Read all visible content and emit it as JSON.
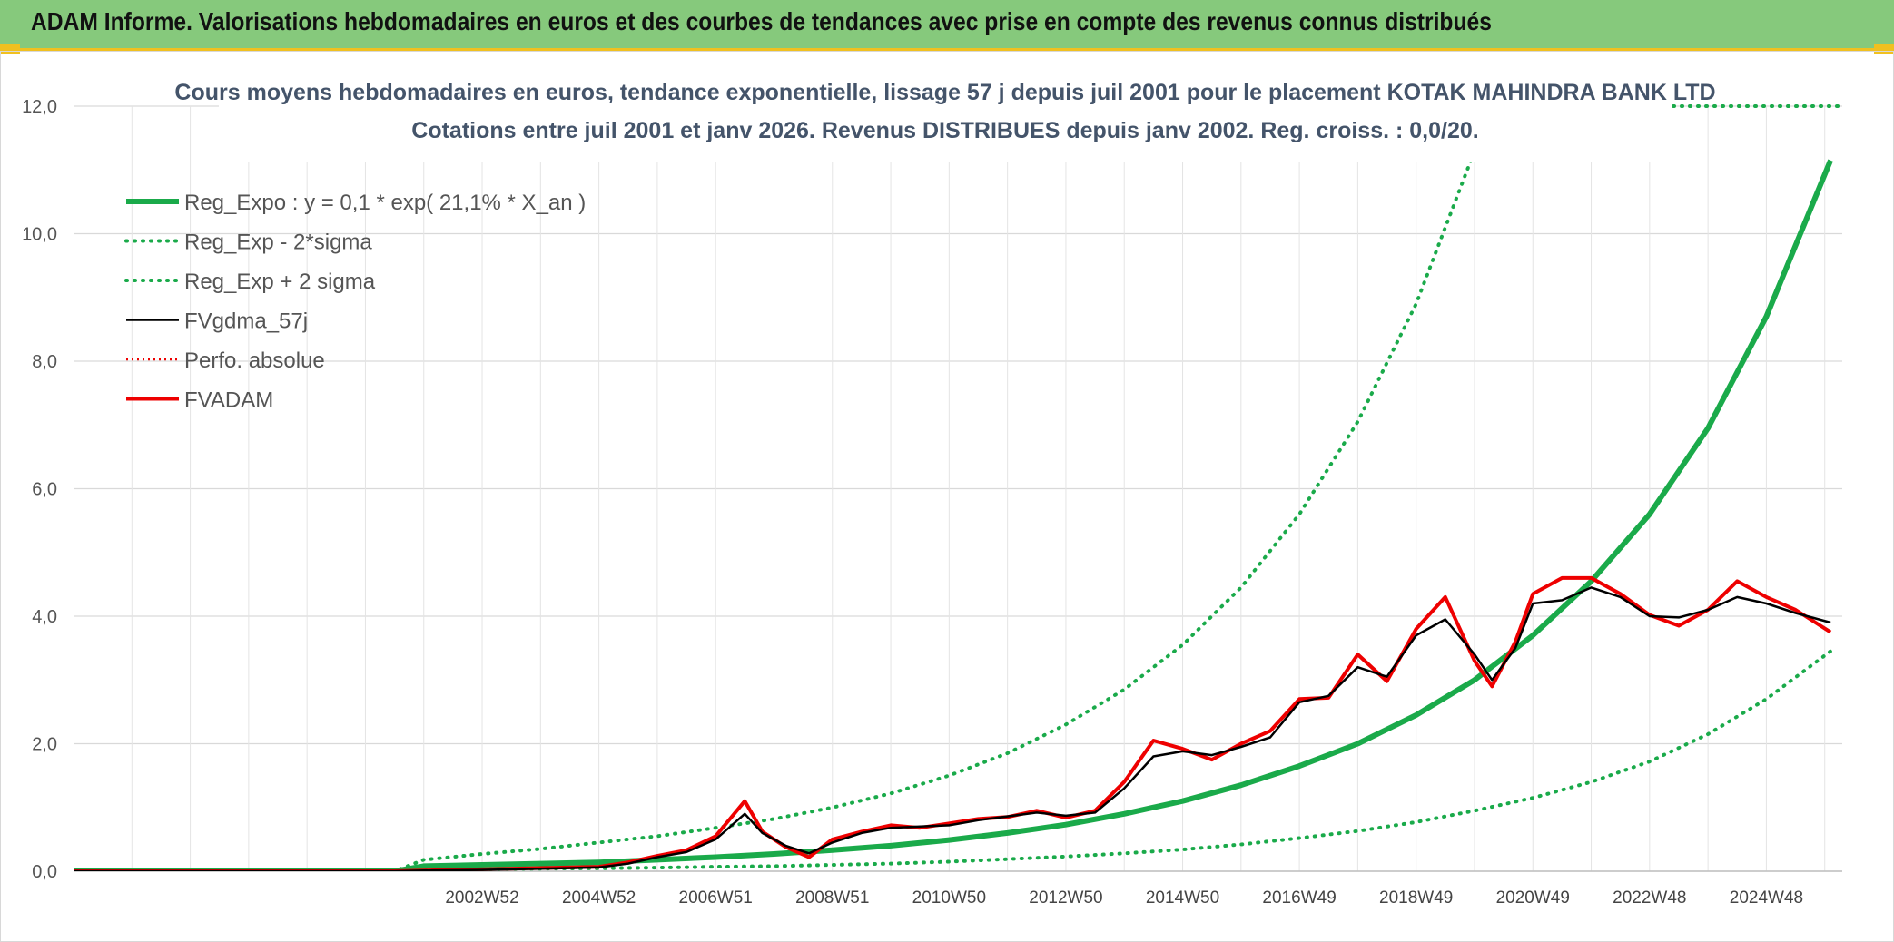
{
  "header": {
    "title": "ADAM Informe. Valorisations hebdomadaires en euros et des courbes de tendances avec prise en compte des revenus connus distribués"
  },
  "colors": {
    "header_bg": "#86c97c",
    "accent_yellow": "#f0c020",
    "reg_expo": "#1aaa4a",
    "sigma_lines": "#1aaa4a",
    "fvgdma": "#000000",
    "fvadam": "#ee0000",
    "title_text": "#44546a"
  },
  "chart_data": {
    "type": "line",
    "title_line1": "Cours moyens hebdomadaires en euros, tendance exponentielle, lissage 57 j depuis juil 2001 pour le placement KOTAK MAHINDRA BANK LTD",
    "title_line2": "Cotations entre juil 2001 et janv 2026. Revenus DISTRIBUES depuis janv 2002. Reg. croiss. : 0,0/20.",
    "xlabel": "",
    "ylabel": "",
    "xlim": [
      1996.0,
      2026.3
    ],
    "ylim": [
      0,
      12
    ],
    "grid": true,
    "legend_position": "top-left",
    "y_ticks": [
      {
        "v": 0,
        "label": "0,0"
      },
      {
        "v": 2,
        "label": "2,0"
      },
      {
        "v": 4,
        "label": "4,0"
      },
      {
        "v": 6,
        "label": "6,0"
      },
      {
        "v": 8,
        "label": "8,0"
      },
      {
        "v": 10,
        "label": "10,0"
      },
      {
        "v": 12,
        "label": "12,0"
      }
    ],
    "x_ticks": [
      {
        "x": 2003.0,
        "label": "2002W52"
      },
      {
        "x": 2005.0,
        "label": "2004W52"
      },
      {
        "x": 2007.0,
        "label": "2006W51"
      },
      {
        "x": 2009.0,
        "label": "2008W51"
      },
      {
        "x": 2011.0,
        "label": "2010W50"
      },
      {
        "x": 2013.0,
        "label": "2012W50"
      },
      {
        "x": 2015.0,
        "label": "2014W50"
      },
      {
        "x": 2017.0,
        "label": "2016W49"
      },
      {
        "x": 2019.0,
        "label": "2018W49"
      },
      {
        "x": 2021.0,
        "label": "2020W49"
      },
      {
        "x": 2023.0,
        "label": "2022W48"
      },
      {
        "x": 2025.0,
        "label": "2024W48"
      }
    ],
    "series": [
      {
        "name": "Reg_Expo : y = 0,1 * exp( 21,1% *  X_an )",
        "style": "solid-thick",
        "x": [
          1996.0,
          2001.5,
          2002.0,
          2003.0,
          2004.0,
          2005.0,
          2006.0,
          2007.0,
          2008.0,
          2009.0,
          2010.0,
          2011.0,
          2012.0,
          2013.0,
          2014.0,
          2015.0,
          2016.0,
          2017.0,
          2018.0,
          2019.0,
          2020.0,
          2021.0,
          2022.0,
          2023.0,
          2024.0,
          2025.0,
          2026.1
        ],
        "y": [
          0.0,
          0.0,
          0.08,
          0.1,
          0.12,
          0.14,
          0.18,
          0.22,
          0.27,
          0.33,
          0.4,
          0.49,
          0.6,
          0.73,
          0.9,
          1.1,
          1.35,
          1.65,
          2.0,
          2.45,
          3.0,
          3.7,
          4.55,
          5.6,
          6.95,
          8.7,
          11.15
        ]
      },
      {
        "name": "Reg_Exp - 2*sigma",
        "style": "dotted",
        "x": [
          1996.0,
          2001.5,
          2002.0,
          2003.0,
          2004.0,
          2005.0,
          2006.0,
          2007.0,
          2008.0,
          2009.0,
          2010.0,
          2011.0,
          2012.0,
          2013.0,
          2014.0,
          2015.0,
          2016.0,
          2017.0,
          2018.0,
          2019.0,
          2020.0,
          2021.0,
          2022.0,
          2023.0,
          2024.0,
          2025.0,
          2026.1
        ],
        "y": [
          0.0,
          0.0,
          0.02,
          0.03,
          0.04,
          0.045,
          0.055,
          0.07,
          0.08,
          0.1,
          0.12,
          0.15,
          0.19,
          0.23,
          0.28,
          0.34,
          0.42,
          0.52,
          0.63,
          0.77,
          0.95,
          1.15,
          1.4,
          1.72,
          2.15,
          2.7,
          3.45
        ]
      },
      {
        "name": "Reg_Exp + 2 sigma",
        "style": "dotted",
        "x": [
          1996.0,
          2001.5,
          2002.0,
          2003.0,
          2004.0,
          2005.0,
          2006.0,
          2007.0,
          2008.0,
          2009.0,
          2010.0,
          2011.0,
          2012.0,
          2013.0,
          2014.0,
          2015.0,
          2016.0,
          2017.0,
          2018.0,
          2019.0,
          2020.0,
          2020.3
        ],
        "y": [
          0.0,
          0.0,
          0.18,
          0.27,
          0.35,
          0.45,
          0.55,
          0.68,
          0.82,
          1.0,
          1.22,
          1.5,
          1.85,
          2.3,
          2.85,
          3.55,
          4.45,
          5.6,
          7.05,
          8.9,
          11.3,
          12.2
        ]
      },
      {
        "name": "FVgdma_57j",
        "style": "solid-thin",
        "x": [
          1996.0,
          2001.5,
          2002.0,
          2003.0,
          2004.0,
          2005.0,
          2005.5,
          2006.0,
          2006.5,
          2007.0,
          2007.5,
          2007.8,
          2008.2,
          2008.6,
          2009.0,
          2009.5,
          2010.0,
          2010.5,
          2011.0,
          2011.5,
          2012.0,
          2012.5,
          2013.0,
          2013.5,
          2014.0,
          2014.5,
          2015.0,
          2015.5,
          2016.0,
          2016.5,
          2017.0,
          2017.5,
          2018.0,
          2018.5,
          2019.0,
          2019.5,
          2020.0,
          2020.3,
          2020.7,
          2021.0,
          2021.5,
          2022.0,
          2022.5,
          2023.0,
          2023.5,
          2024.0,
          2024.5,
          2025.0,
          2025.5,
          2026.1
        ],
        "y": [
          0.0,
          0.0,
          0.01,
          0.02,
          0.04,
          0.06,
          0.12,
          0.22,
          0.3,
          0.5,
          0.9,
          0.6,
          0.4,
          0.28,
          0.45,
          0.6,
          0.68,
          0.7,
          0.72,
          0.8,
          0.86,
          0.92,
          0.87,
          0.92,
          1.3,
          1.8,
          1.88,
          1.82,
          1.95,
          2.1,
          2.65,
          2.75,
          3.2,
          3.05,
          3.7,
          3.95,
          3.4,
          3.0,
          3.5,
          4.2,
          4.25,
          4.45,
          4.3,
          4.0,
          3.98,
          4.1,
          4.3,
          4.2,
          4.05,
          3.9
        ]
      },
      {
        "name": "Perfo. absolue",
        "style": "dotted-red",
        "x": [],
        "y": []
      },
      {
        "name": "FVADAM",
        "style": "solid-red",
        "x": [
          1996.0,
          2001.5,
          2002.0,
          2003.0,
          2004.0,
          2005.0,
          2005.5,
          2006.0,
          2006.5,
          2007.0,
          2007.5,
          2007.8,
          2008.2,
          2008.6,
          2009.0,
          2009.5,
          2010.0,
          2010.5,
          2011.0,
          2011.5,
          2012.0,
          2012.5,
          2013.0,
          2013.5,
          2014.0,
          2014.5,
          2015.0,
          2015.5,
          2016.0,
          2016.5,
          2017.0,
          2017.5,
          2018.0,
          2018.5,
          2019.0,
          2019.5,
          2020.0,
          2020.3,
          2020.7,
          2021.0,
          2021.5,
          2022.0,
          2022.5,
          2023.0,
          2023.5,
          2024.0,
          2024.5,
          2025.0,
          2025.5,
          2026.1
        ],
        "y": [
          0.0,
          0.0,
          0.01,
          0.03,
          0.05,
          0.07,
          0.14,
          0.24,
          0.33,
          0.55,
          1.1,
          0.62,
          0.38,
          0.22,
          0.5,
          0.62,
          0.72,
          0.68,
          0.75,
          0.82,
          0.85,
          0.95,
          0.84,
          0.95,
          1.4,
          2.05,
          1.92,
          1.75,
          2.0,
          2.2,
          2.7,
          2.72,
          3.4,
          2.98,
          3.8,
          4.3,
          3.3,
          2.9,
          3.6,
          4.35,
          4.6,
          4.6,
          4.35,
          4.02,
          3.85,
          4.1,
          4.55,
          4.3,
          4.1,
          3.75
        ]
      }
    ]
  }
}
